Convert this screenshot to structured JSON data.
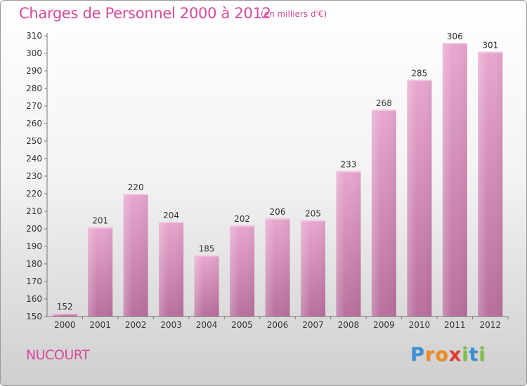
{
  "title": "Charges de Personnel 2000 à 2012",
  "subtitle": "(en milliers d'€)",
  "commune": "NUCOURT",
  "logo": {
    "letters": [
      "P",
      "r",
      "o",
      "x",
      "i",
      "t",
      "i"
    ],
    "colors": [
      "#3a8fd6",
      "#f08a1c",
      "#f08a1c",
      "#e23a2f",
      "#7cc242",
      "#3a8fd6",
      "#7cc242"
    ]
  },
  "colors": {
    "bar": "#d48ab8",
    "text_accent": "#d8499a",
    "axis_text": "#333333"
  },
  "chart_data": {
    "type": "bar",
    "categories": [
      "2000",
      "2001",
      "2002",
      "2003",
      "2004",
      "2005",
      "2006",
      "2007",
      "2008",
      "2009",
      "2010",
      "2011",
      "2012"
    ],
    "values": [
      152,
      201,
      220,
      204,
      185,
      202,
      206,
      205,
      233,
      268,
      285,
      306,
      301
    ],
    "ylim": [
      150,
      310
    ],
    "yticks": [
      150,
      160,
      170,
      180,
      190,
      200,
      210,
      220,
      230,
      240,
      250,
      260,
      270,
      280,
      290,
      300,
      310
    ],
    "grid": false,
    "data_labels": true
  }
}
